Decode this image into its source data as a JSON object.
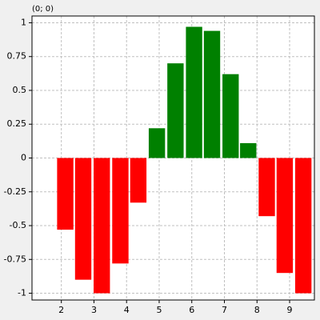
{
  "chart_data": {
    "type": "bar",
    "annotation": "(0; 0)",
    "x": [
      2.12,
      2.67,
      3.24,
      3.81,
      4.36,
      4.93,
      5.5,
      6.07,
      6.62,
      7.19,
      7.73,
      8.3,
      8.85,
      9.42
    ],
    "values": [
      -0.53,
      -0.9,
      -1.0,
      -0.78,
      -0.33,
      0.22,
      0.7,
      0.97,
      0.94,
      0.62,
      0.11,
      -0.43,
      -0.85,
      -1.0
    ],
    "positive_color": "#008000",
    "negative_color": "#ff0000",
    "xlim": [
      1.1,
      9.76
    ],
    "xticks": [
      2,
      3,
      4,
      5,
      6,
      7,
      8,
      9
    ],
    "ylim": [
      -1.05,
      1.05
    ],
    "yticks": [
      -1,
      -0.75,
      -0.5,
      -0.25,
      0,
      0.25,
      0.5,
      0.75,
      1
    ],
    "grid": true
  }
}
